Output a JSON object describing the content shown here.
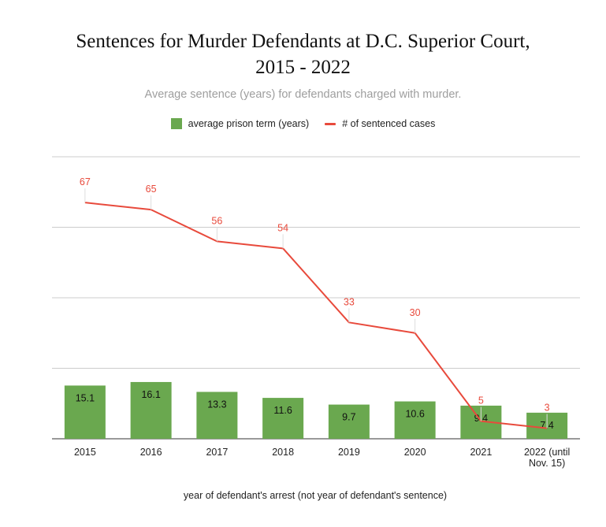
{
  "chart_data": {
    "type": "bar",
    "title_lines": [
      "Sentences for Murder Defendants at D.C. Superior Court,",
      "2015 - 2022"
    ],
    "subtitle": "Average sentence (years) for defendants charged with murder.",
    "xlabel": "year of defendant's arrest (not year of defendant's sentence)",
    "categories": [
      [
        "2015"
      ],
      [
        "2016"
      ],
      [
        "2017"
      ],
      [
        "2018"
      ],
      [
        "2019"
      ],
      [
        "2020"
      ],
      [
        "2021"
      ],
      [
        "2022 (until",
        "Nov. 15)"
      ]
    ],
    "series": [
      {
        "name": "average prison term (years)",
        "type": "bar",
        "color": "#6aa84f",
        "values": [
          15.1,
          16.1,
          13.3,
          11.6,
          9.7,
          10.6,
          9.4,
          7.4
        ],
        "labels": [
          "15.1",
          "16.1",
          "13.3",
          "11.6",
          "9.7",
          "10.6",
          "9.4",
          "7.4"
        ],
        "axis_max": 80
      },
      {
        "name": "# of sentenced cases",
        "type": "line",
        "color": "#e84a3c",
        "values": [
          67,
          65,
          56,
          54,
          33,
          30,
          5,
          3
        ],
        "labels": [
          "67",
          "65",
          "56",
          "54",
          "33",
          "30",
          "5",
          "3"
        ],
        "axis_max": 80
      }
    ],
    "legend_position": "top",
    "grid": true,
    "gridline_count": 4
  }
}
